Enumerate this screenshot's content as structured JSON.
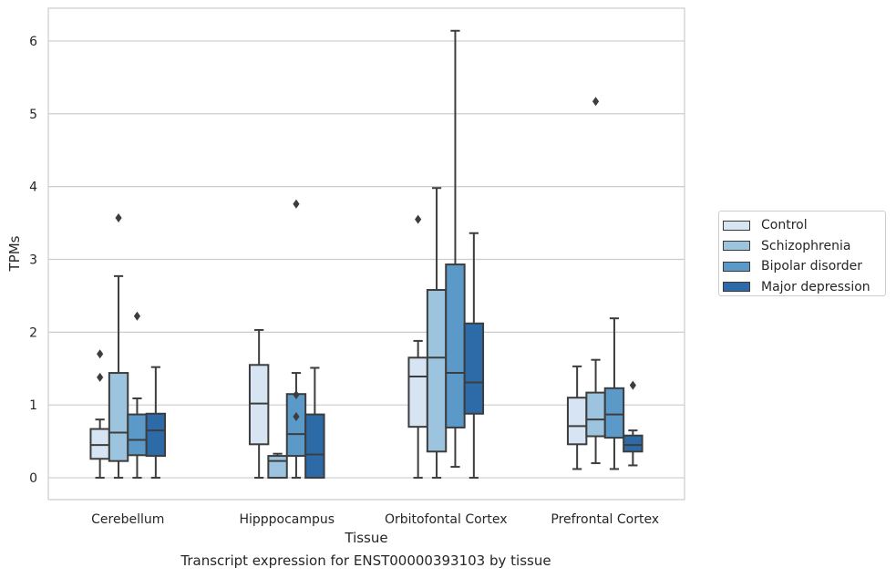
{
  "caption": "Transcript expression for ENST00000393103 by tissue",
  "chart_data": {
    "type": "box",
    "xlabel": "Tissue",
    "ylabel": "TPMs",
    "ylim": [
      -0.3,
      6.45
    ],
    "yticks": [
      "0",
      "1",
      "2",
      "3",
      "4",
      "5",
      "6"
    ],
    "grid": "horizontal",
    "legend_position": "right",
    "categories": [
      "Cerebellum",
      "Hipppocampus",
      "Orbitofontal Cortex",
      "Prefrontal Cortex"
    ],
    "series": [
      {
        "name": "Control",
        "color": "#d6e4f3",
        "boxes": [
          {
            "whisker_low": 0,
            "q1": 0.26,
            "median": 0.45,
            "q3": 0.67,
            "whisker_high": 0.8,
            "outliers": [
              1.38,
              1.7
            ]
          },
          {
            "whisker_low": 0,
            "q1": 0.46,
            "median": 1.02,
            "q3": 1.55,
            "whisker_high": 2.03,
            "outliers": []
          },
          {
            "whisker_low": 0,
            "q1": 0.7,
            "median": 1.39,
            "q3": 1.65,
            "whisker_high": 1.88,
            "outliers": [
              3.55
            ]
          },
          {
            "whisker_low": 0.12,
            "q1": 0.46,
            "median": 0.71,
            "q3": 1.1,
            "whisker_high": 1.53,
            "outliers": []
          }
        ]
      },
      {
        "name": "Schizophrenia",
        "color": "#9dc4de",
        "boxes": [
          {
            "whisker_low": 0,
            "q1": 0.23,
            "median": 0.62,
            "q3": 1.44,
            "whisker_high": 2.77,
            "outliers": [
              3.57
            ]
          },
          {
            "whisker_low": 0,
            "q1": 0,
            "median": 0.23,
            "q3": 0.3,
            "whisker_high": 0.33,
            "outliers": []
          },
          {
            "whisker_low": 0,
            "q1": 0.36,
            "median": 1.65,
            "q3": 2.58,
            "whisker_high": 3.98,
            "outliers": []
          },
          {
            "whisker_low": 0.2,
            "q1": 0.57,
            "median": 0.8,
            "q3": 1.17,
            "whisker_high": 1.62,
            "outliers": [
              5.17
            ]
          }
        ]
      },
      {
        "name": "Bipolar disorder",
        "color": "#5b9ac8",
        "boxes": [
          {
            "whisker_low": 0,
            "q1": 0.31,
            "median": 0.52,
            "q3": 0.87,
            "whisker_high": 1.09,
            "outliers": [
              2.22
            ]
          },
          {
            "whisker_low": 0,
            "q1": 0.3,
            "median": 0.6,
            "q3": 1.15,
            "whisker_high": 1.44,
            "outliers": [
              0.84,
              1.14,
              3.76
            ]
          },
          {
            "whisker_low": 0.15,
            "q1": 0.69,
            "median": 1.44,
            "q3": 2.93,
            "whisker_high": 6.14,
            "outliers": []
          },
          {
            "whisker_low": 0.12,
            "q1": 0.55,
            "median": 0.87,
            "q3": 1.23,
            "whisker_high": 2.19,
            "outliers": []
          }
        ]
      },
      {
        "name": "Major depression",
        "color": "#2d6aa8",
        "boxes": [
          {
            "whisker_low": 0,
            "q1": 0.3,
            "median": 0.65,
            "q3": 0.88,
            "whisker_high": 1.52,
            "outliers": []
          },
          {
            "whisker_low": 0,
            "q1": 0,
            "median": 0.32,
            "q3": 0.87,
            "whisker_high": 1.51,
            "outliers": []
          },
          {
            "whisker_low": 0,
            "q1": 0.88,
            "median": 1.31,
            "q3": 2.12,
            "whisker_high": 3.36,
            "outliers": []
          },
          {
            "whisker_low": 0.17,
            "q1": 0.36,
            "median": 0.45,
            "q3": 0.58,
            "whisker_high": 0.65,
            "outliers": [
              1.27
            ]
          }
        ]
      }
    ]
  }
}
